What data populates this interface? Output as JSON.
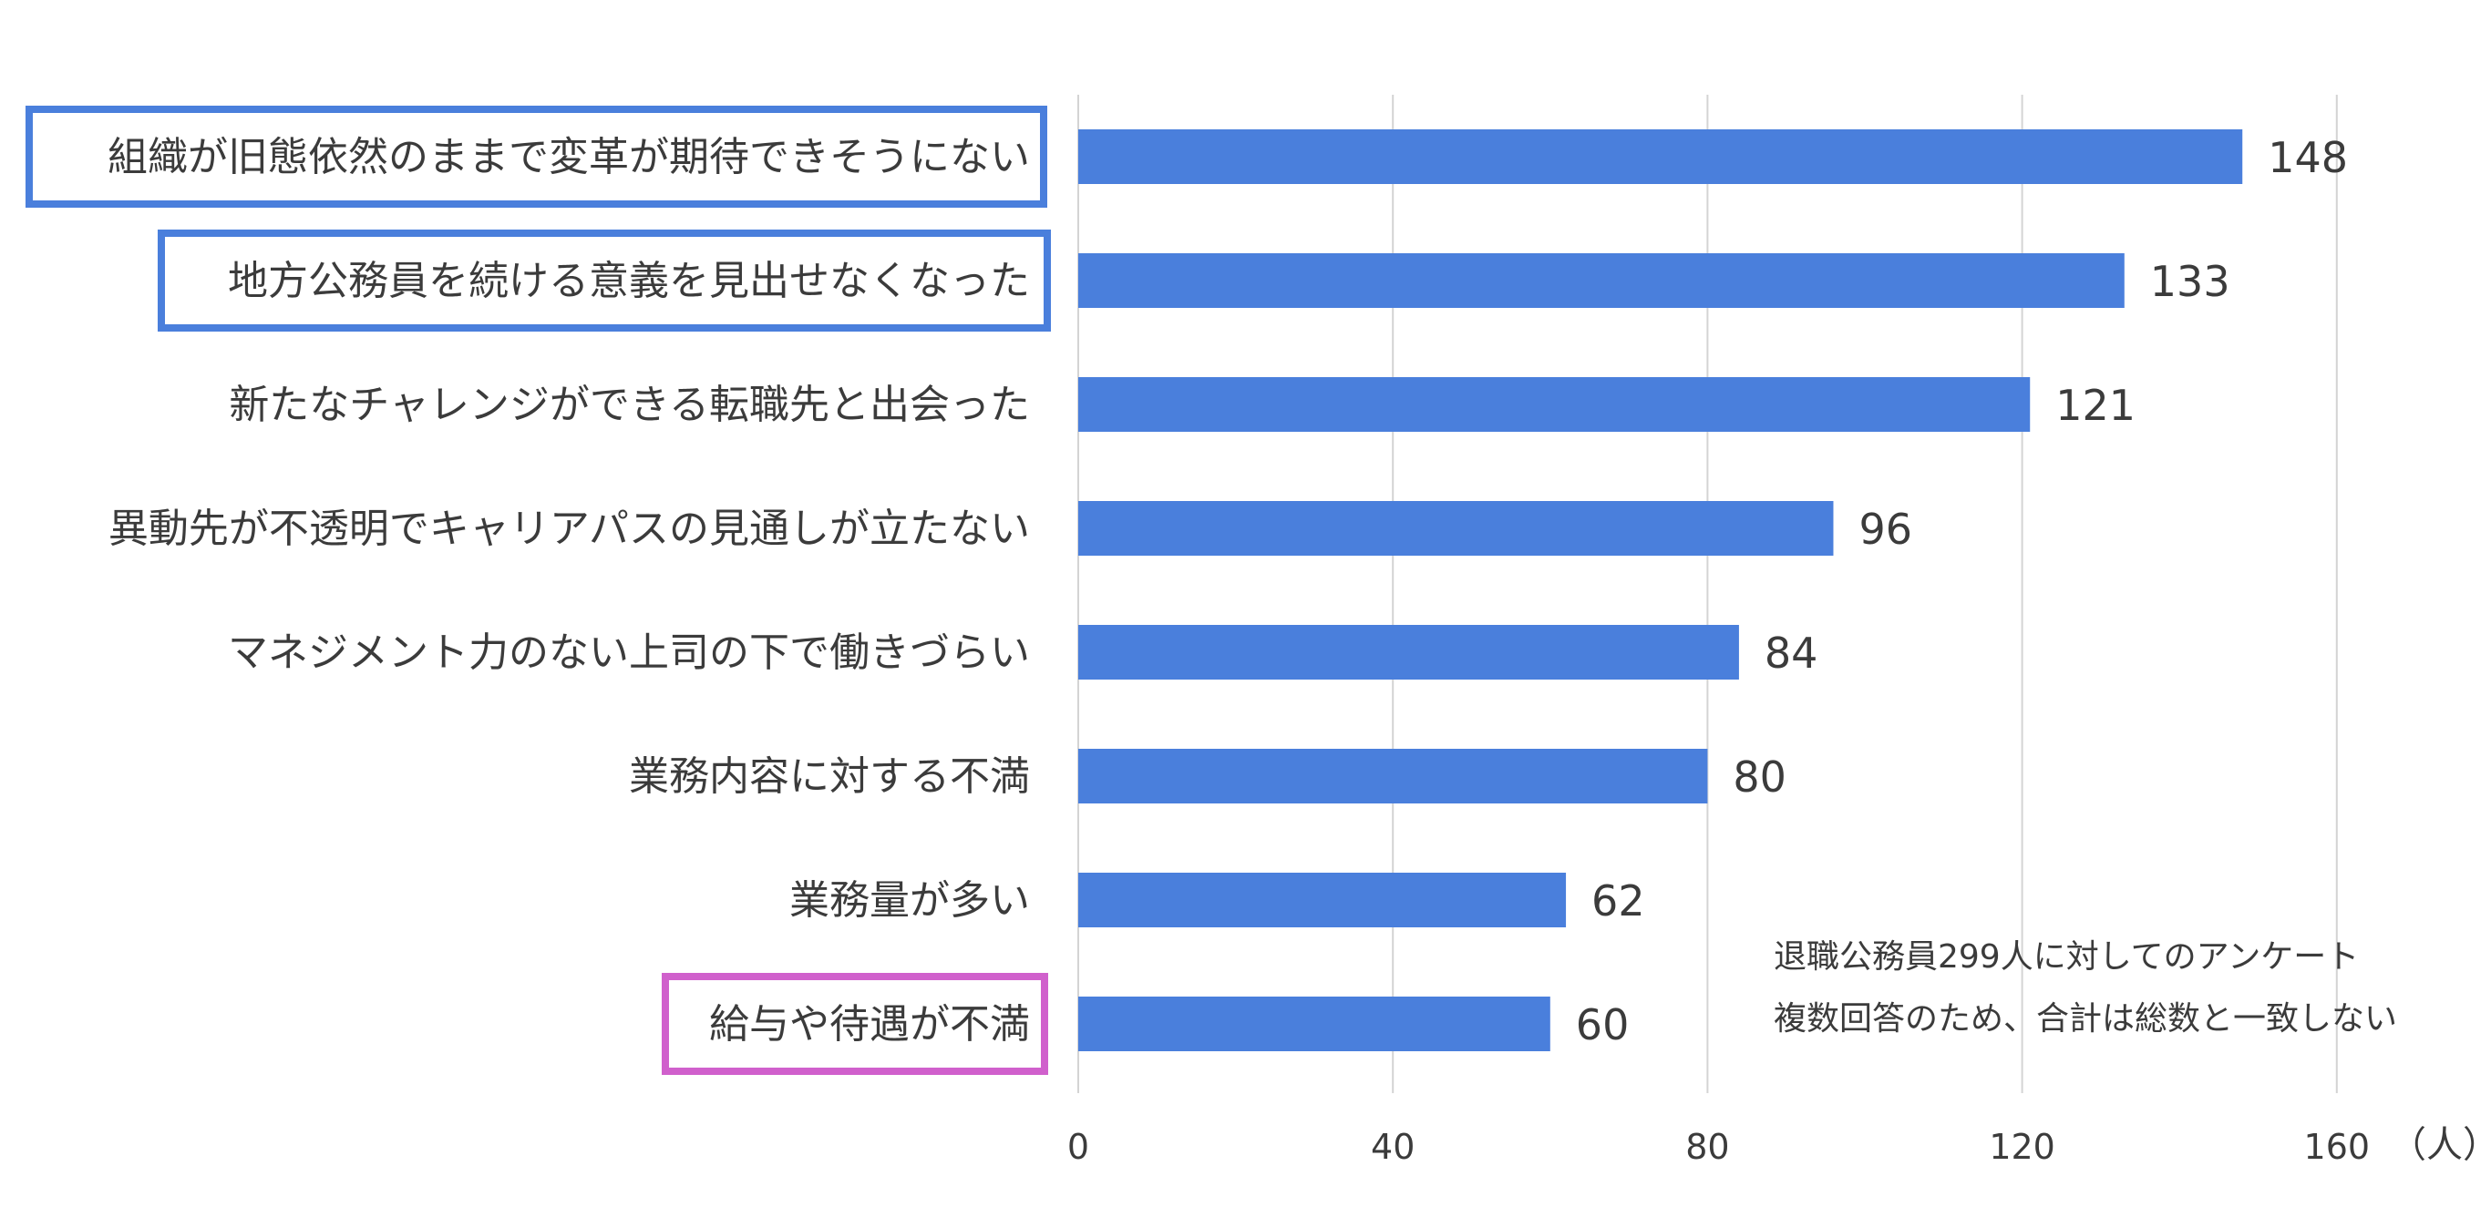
{
  "chart_data": {
    "type": "bar",
    "orientation": "horizontal",
    "categories": [
      "組織が旧態依然のままで変革が期待できそうにない",
      "地方公務員を続ける意義を見出せなくなった",
      "新たなチャレンジができる転職先と出会った",
      "異動先が不透明でキャリアパスの見通しが立たない",
      "マネジメント力のない上司の下で働きづらい",
      "業務内容に対する不満",
      "業務量が多い",
      "給与や待遇が不満"
    ],
    "values": [
      148,
      133,
      121,
      96,
      84,
      80,
      62,
      60
    ],
    "highlighted": [
      {
        "index": 0,
        "color": "#4a7fdc"
      },
      {
        "index": 1,
        "color": "#4a7fdc"
      },
      {
        "index": 7,
        "color": "#d060cc"
      }
    ],
    "xlim": [
      0,
      160
    ],
    "xticks": [
      "0",
      "40",
      "80",
      "120",
      "160"
    ],
    "xunit": "（人）",
    "grid": true,
    "bar_color": "#4a7fdc",
    "notes": [
      "退職公務員299人に対してのアンケート",
      "複数回答のため、合計は総数と一致しない"
    ]
  }
}
